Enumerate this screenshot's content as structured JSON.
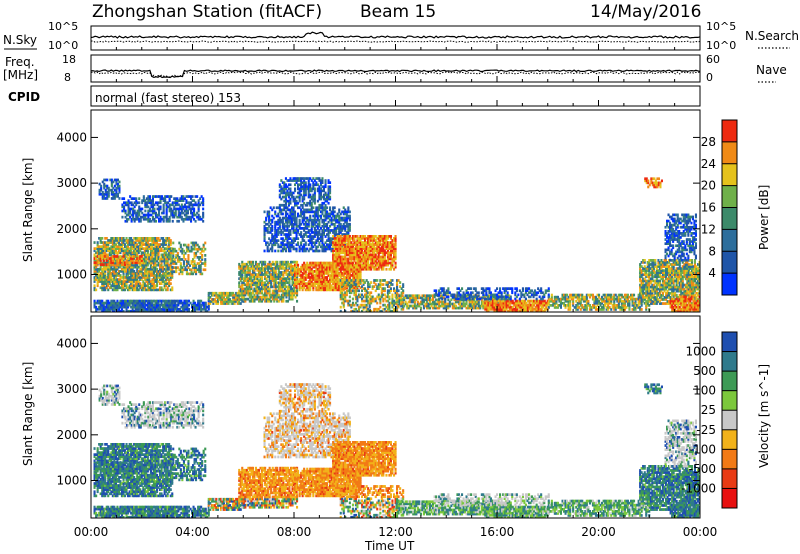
{
  "header": {
    "station": "Zhongshan Station (fitACF)",
    "beam": "Beam 15",
    "date": "14/May/2016"
  },
  "strips": {
    "nsky_label": "N.Sky",
    "nsearch_label": "N.Search",
    "noise_ticks": [
      "10^5",
      "10^0"
    ],
    "freq_label_1": "Freq.",
    "freq_label_2": "[MHz]",
    "freq_ticks": [
      "18",
      "8"
    ],
    "nave_label": "Nave",
    "nave_ticks": [
      "60",
      "0"
    ],
    "cpid_label": "CPID",
    "cpid_value": "normal (fast stereo) 153"
  },
  "chart_data": [
    {
      "type": "heatmap",
      "name": "power",
      "ylabel": "Slant Range [km]",
      "yticks": [
        1000,
        2000,
        3000,
        4000
      ],
      "ylim": [
        180,
        4600
      ],
      "xlabel": "Time UT",
      "xticks": [
        "00:00",
        "04:00",
        "08:00",
        "12:00",
        "16:00",
        "20:00",
        "00:00"
      ],
      "colorbar_label": "Power [dB]",
      "colorbar_ticks": [
        "4",
        "8",
        "12",
        "16",
        "20",
        "24",
        "28"
      ],
      "colors": [
        "#0033ff",
        "#1f55a8",
        "#2d6e9c",
        "#3c8a6a",
        "#6fb04a",
        "#e5c21c",
        "#f08a16",
        "#ee2a10"
      ]
    },
    {
      "type": "heatmap",
      "name": "velocity",
      "ylabel": "Slant Range [km]",
      "yticks": [
        1000,
        2000,
        3000,
        4000
      ],
      "ylim": [
        180,
        4600
      ],
      "xlabel": "Time UT",
      "xticks": [
        "00:00",
        "04:00",
        "08:00",
        "12:00",
        "16:00",
        "20:00",
        "00:00"
      ],
      "colorbar_label": "Velocity [m s^-1]",
      "colorbar_ticks": [
        "1000",
        "500",
        "100",
        "25",
        "-25",
        "-100",
        "-500",
        "-1000"
      ],
      "colors": [
        "#1f4fb0",
        "#2f7a8c",
        "#3d9a55",
        "#7cc83c",
        "#c8c8c8",
        "#f2b21a",
        "#f27a16",
        "#e83a14",
        "#e81010"
      ]
    }
  ]
}
